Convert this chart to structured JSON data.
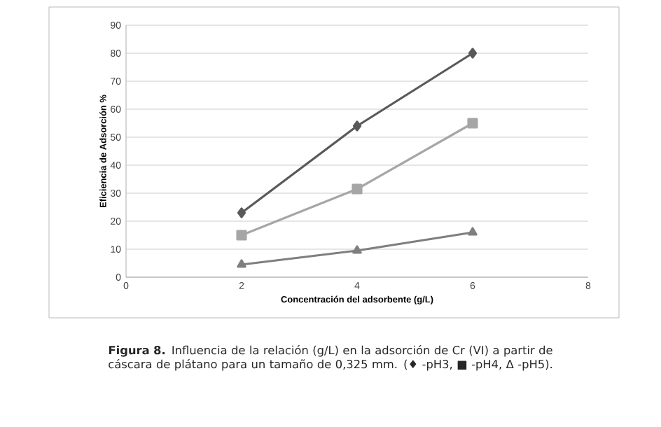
{
  "chart_data": {
    "type": "line",
    "xlabel": "Concentración del adsorbente (g/L)",
    "ylabel": "Eficiencia de Adsorción %",
    "annotations": [
      "**Figura 8.** Influencia de la relación (g/L) en la adsorción de Cr (VI) a partir de cáscara de plátano para un tamaño de 0,325 mm. (♦ -pH3, ■ -pH4, Δ -pH5)."
    ],
    "x": [
      2,
      4,
      6
    ],
    "series": [
      {
        "color": "#595959",
        "values": [
          23,
          54,
          80
        ],
        "marker": "diamond"
      },
      {
        "color": "#a6a6a6",
        "values": [
          15,
          31.5,
          55
        ],
        "marker": "square"
      },
      {
        "color": "#7f7f7f",
        "values": [
          4.5,
          9.5,
          16
        ],
        "marker": "triangle"
      }
    ],
    "xlim": [
      0,
      8
    ],
    "xticks": [
      0,
      2,
      4,
      6,
      8
    ],
    "ylim": [
      0,
      90
    ],
    "yticks": [
      0,
      10,
      20,
      30,
      40,
      50,
      60,
      70,
      80,
      90
    ],
    "grid": "y",
    "line_style": "solid"
  }
}
